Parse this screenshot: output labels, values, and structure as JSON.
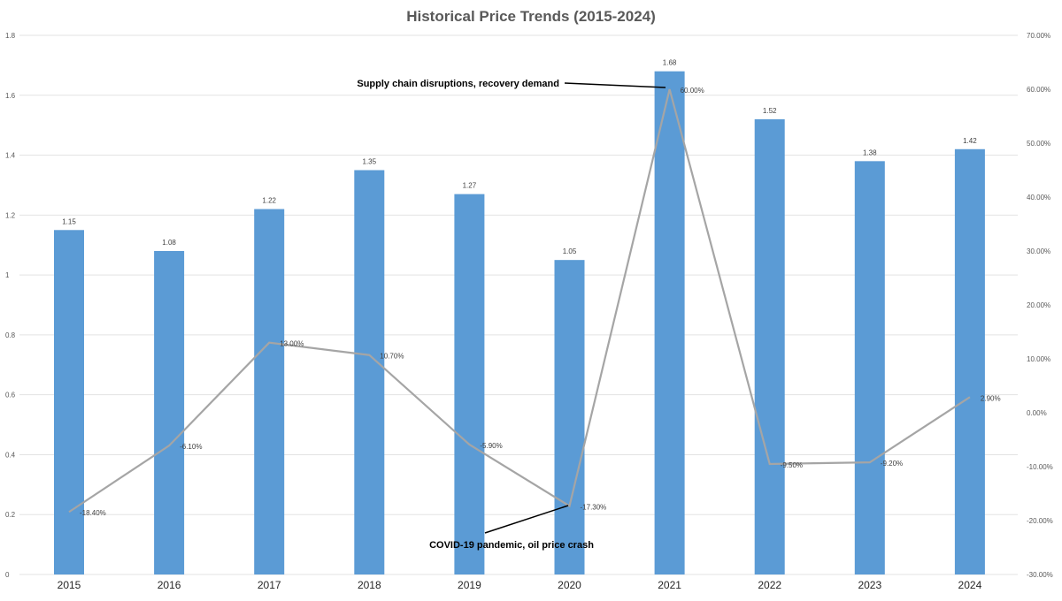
{
  "chart_data": {
    "type": "bar+line",
    "title": "Historical Price Trends (2015-2024)",
    "categories": [
      "2015",
      "2016",
      "2017",
      "2018",
      "2019",
      "2020",
      "2021",
      "2022",
      "2023",
      "2024"
    ],
    "series": [
      {
        "type": "bar",
        "axis": "left",
        "color": "#5b9bd5",
        "values": [
          1.15,
          1.08,
          1.22,
          1.35,
          1.27,
          1.05,
          1.68,
          1.52,
          1.38,
          1.42
        ],
        "labels": [
          "1.15",
          "1.08",
          "1.22",
          "1.35",
          "1.27",
          "1.05",
          "1.68",
          "1.52",
          "1.38",
          "1.42"
        ]
      },
      {
        "type": "line",
        "axis": "right",
        "color": "#a5a5a5",
        "values": [
          -18.4,
          -6.1,
          13.0,
          10.7,
          -5.9,
          -17.3,
          60.0,
          -9.5,
          -9.2,
          2.9
        ],
        "labels": [
          "-18.40%",
          "-6.10%",
          "13.00%",
          "10.70%",
          "-5.90%",
          "-17.30%",
          "60.00%",
          "-9.50%",
          "-9.20%",
          "2.90%"
        ]
      }
    ],
    "left_axis": {
      "ylim": [
        0,
        1.8
      ],
      "ticks": [
        "0",
        "0.2",
        "0.4",
        "0.6",
        "0.8",
        "1",
        "1.2",
        "1.4",
        "1.6",
        "1.8"
      ]
    },
    "right_axis": {
      "ylim": [
        -30,
        70
      ],
      "ticks": [
        "-30.00%",
        "-20.00%",
        "-10.00%",
        "0.00%",
        "10.00%",
        "20.00%",
        "30.00%",
        "40.00%",
        "50.00%",
        "60.00%",
        "70.00%"
      ]
    },
    "grid": true,
    "annotations": [
      {
        "text": "Supply chain disruptions, recovery demand",
        "category": "2021"
      },
      {
        "text": "COVID-19 pandemic, oil price crash",
        "category": "2020"
      }
    ]
  }
}
